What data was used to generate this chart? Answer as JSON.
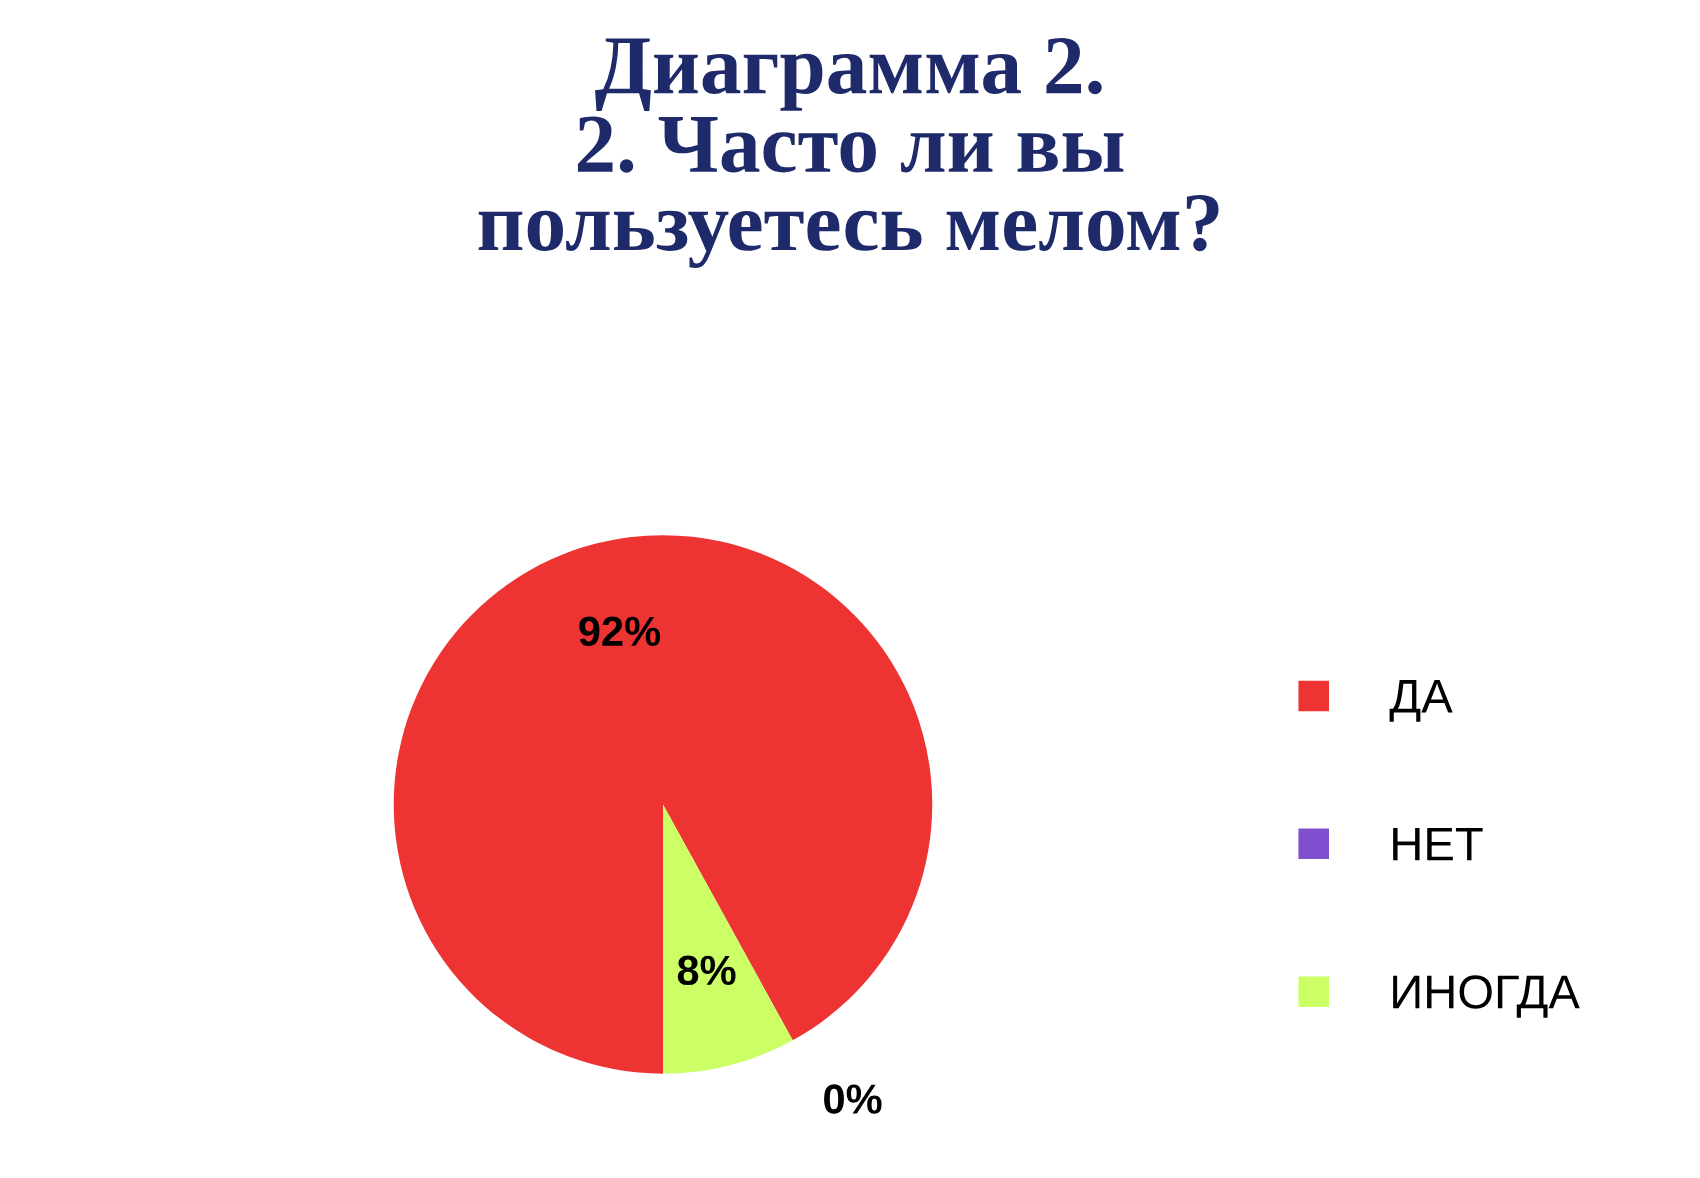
{
  "chart_data": {
    "type": "pie",
    "title": "Диаграмма 2.\n2. Часто ли вы\nпользуетесь мелом?",
    "categories": [
      "ДА",
      "НЕТ",
      "ИНОГДА"
    ],
    "values": [
      92,
      0,
      8
    ],
    "colors": [
      "#ee3333",
      "#7f4fd0",
      "#ccff66"
    ],
    "value_labels": [
      "92%",
      "0%",
      "8%"
    ],
    "legend": "right"
  }
}
